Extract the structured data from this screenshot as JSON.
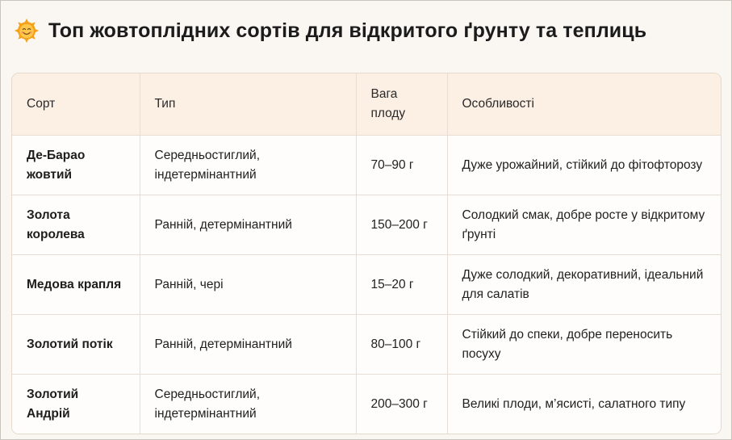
{
  "header": {
    "title": "Топ жовтоплідних сортів для відкритого ґрунту та теплиць",
    "icon": "smiling-sun-icon"
  },
  "colors": {
    "background": "#faf7f3",
    "table_header_bg": "#fcefe3",
    "border": "#e7ddd2",
    "sun_orange": "#f5a11a"
  },
  "table": {
    "columns": [
      "Сорт",
      "Тип",
      "Вага плоду",
      "Особливості"
    ],
    "rows": [
      {
        "sort": "Де-Барао жовтий",
        "type": "Середньостиглий, індетермінантний",
        "weight": "70–90 г",
        "features": "Дуже урожайний, стійкий до фітофторозу"
      },
      {
        "sort": "Золота королева",
        "type": "Ранній, детермінантний",
        "weight": "150–200 г",
        "features": "Солодкий смак, добре росте у відкритому ґрунті"
      },
      {
        "sort": "Медова крапля",
        "type": "Ранній, чері",
        "weight": "15–20 г",
        "features": "Дуже солодкий, декоративний, ідеальний для салатів"
      },
      {
        "sort": "Золотий потік",
        "type": "Ранній, детермінантний",
        "weight": "80–100 г",
        "features": "Стійкий до спеки, добре переносить посуху"
      },
      {
        "sort": "Золотий Андрій",
        "type": "Середньостиглий, індетермінантний",
        "weight": "200–300 г",
        "features": "Великі плоди, м’ясисті, салатного типу"
      }
    ]
  }
}
